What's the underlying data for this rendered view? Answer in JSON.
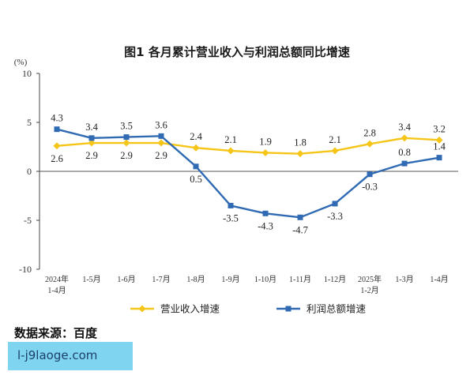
{
  "chart_data": {
    "type": "line",
    "title": "图1 各月累计营业收入与利润总额同比增速",
    "unit_label": "(%)",
    "categories": [
      [
        "2024年",
        "1-4月"
      ],
      [
        "1-5月"
      ],
      [
        "1-6月"
      ],
      [
        "1-7月"
      ],
      [
        "1-8月"
      ],
      [
        "1-9月"
      ],
      [
        "1-10月"
      ],
      [
        "1-11月"
      ],
      [
        "1-12月"
      ],
      [
        "2025年",
        "1-2月"
      ],
      [
        "1-3月"
      ],
      [
        "1-4月"
      ]
    ],
    "ylim": [
      -10,
      10
    ],
    "yticks": [
      10,
      5,
      0,
      -5,
      -10
    ],
    "yticks_labels": [
      "10",
      "5",
      "0",
      "-5",
      "-10"
    ],
    "series": [
      {
        "name": "营业收入增速",
        "color": "#f5c518",
        "values": [
          2.6,
          2.9,
          2.9,
          2.9,
          2.4,
          2.1,
          1.9,
          1.8,
          2.1,
          2.8,
          3.4,
          3.2
        ],
        "labels": [
          "2.6",
          "2.9",
          "2.9",
          "2.9",
          "2.4",
          "2.1",
          "1.9",
          "1.8",
          "2.1",
          "2.8",
          "3.4",
          "3.2"
        ],
        "label_pos": [
          "below",
          "below",
          "below",
          "below",
          "above",
          "above",
          "above",
          "above",
          "above",
          "above",
          "above",
          "above"
        ]
      },
      {
        "name": "利润总额增速",
        "color": "#2f6ab3",
        "values": [
          4.3,
          3.4,
          3.5,
          3.6,
          0.5,
          -3.5,
          -4.3,
          -4.7,
          -3.3,
          -0.3,
          0.8,
          1.4
        ],
        "labels": [
          "4.3",
          "3.4",
          "3.5",
          "3.6",
          "0.5",
          "-3.5",
          "-4.3",
          "-4.7",
          "-3.3",
          "-0.3",
          "0.8",
          "1.4"
        ],
        "label_pos": [
          "above",
          "above",
          "above",
          "above",
          "below",
          "below",
          "below",
          "below",
          "below",
          "below",
          "above",
          "above"
        ]
      }
    ],
    "legend_position": "bottom",
    "grid": false
  },
  "source_text": "数据来源：百度",
  "watermark_text": "l-j9laoge.com"
}
